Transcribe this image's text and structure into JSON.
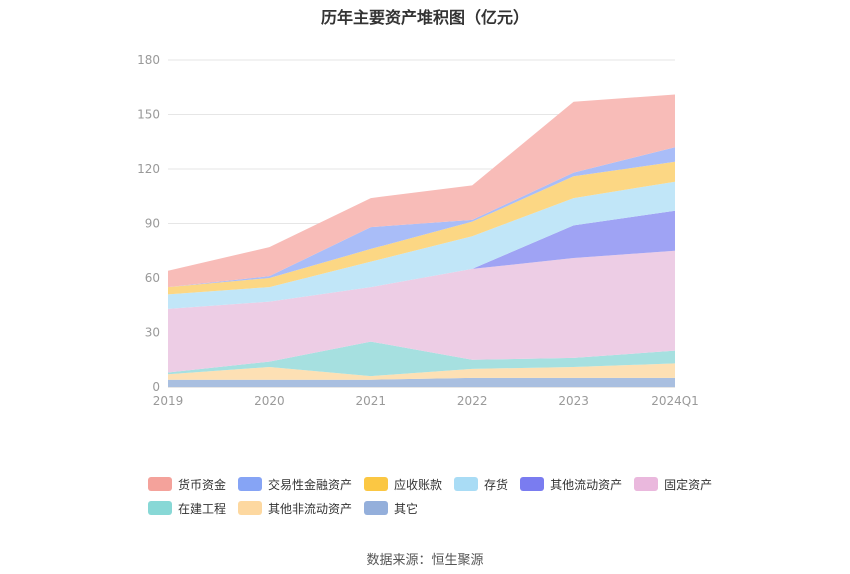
{
  "chart_data": {
    "type": "area",
    "stacked": true,
    "title": "历年主要资产堆积图（亿元）",
    "categories": [
      "2019",
      "2020",
      "2021",
      "2022",
      "2023",
      "2024Q1"
    ],
    "ylim": [
      0,
      180
    ],
    "yticks": [
      0,
      30,
      60,
      90,
      120,
      150,
      180
    ],
    "grid": true,
    "legend_position": "bottom",
    "series": [
      {
        "name": "其它",
        "color": "#a9bfe0",
        "values": [
          4,
          4,
          4,
          5,
          5,
          5
        ]
      },
      {
        "name": "其他非流动资产",
        "color": "#fde0b4",
        "values": [
          3,
          7,
          2,
          5,
          6,
          8
        ]
      },
      {
        "name": "在建工程",
        "color": "#a6e0e0",
        "values": [
          1,
          3,
          19,
          5,
          5,
          7
        ]
      },
      {
        "name": "固定资产",
        "color": "#edcde5",
        "values": [
          35,
          33,
          30,
          50,
          55,
          55
        ]
      },
      {
        "name": "其他流动资产",
        "color": "#9fa3f4",
        "values": [
          0,
          0,
          0,
          0,
          18,
          22
        ]
      },
      {
        "name": "存货",
        "color": "#c1e6f8",
        "values": [
          8,
          8,
          14,
          18,
          15,
          16
        ]
      },
      {
        "name": "应收账款",
        "color": "#fcd784",
        "values": [
          4,
          5,
          7,
          8,
          12,
          11
        ]
      },
      {
        "name": "交易性金融资产",
        "color": "#a9bdf8",
        "values": [
          0,
          1,
          12,
          1,
          2,
          8
        ]
      },
      {
        "name": "货币资金",
        "color": "#f8bcb8",
        "values": [
          9,
          16,
          16,
          19,
          39,
          29
        ]
      }
    ]
  },
  "legend": {
    "row1": [
      {
        "label": "货币资金",
        "color": "#f4a29b"
      },
      {
        "label": "交易性金融资产",
        "color": "#86a4f5"
      },
      {
        "label": "应收账款",
        "color": "#fbc743"
      },
      {
        "label": "存货",
        "color": "#a9dcf5"
      },
      {
        "label": "其他流动资产",
        "color": "#7a7cf0"
      },
      {
        "label": "固定资产",
        "color": "#eab8dd"
      }
    ],
    "row2": [
      {
        "label": "在建工程",
        "color": "#88d8d6"
      },
      {
        "label": "其他非流动资产",
        "color": "#fdd8a0"
      },
      {
        "label": "其它",
        "color": "#94afdb"
      }
    ]
  },
  "source": "数据来源：恒生聚源"
}
